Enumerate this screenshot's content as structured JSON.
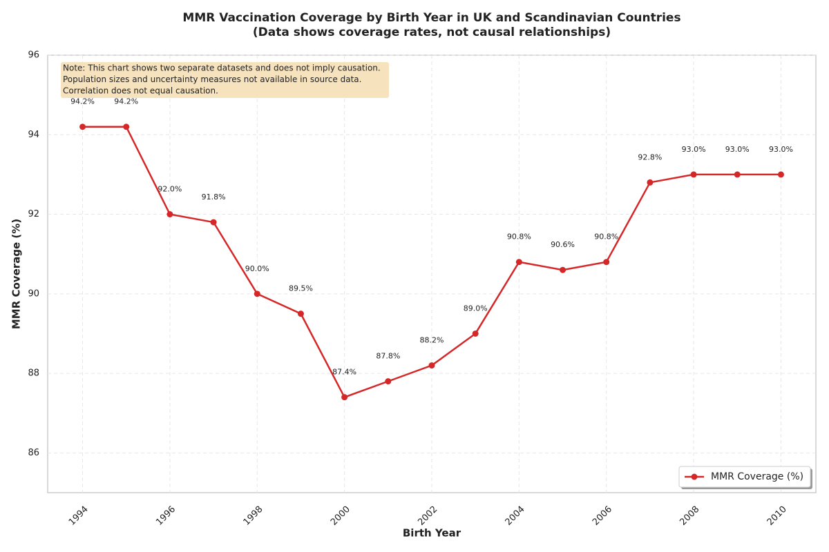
{
  "chart_data": {
    "type": "line",
    "title": "MMR Vaccination Coverage by Birth Year in UK and Scandinavian Countries",
    "subtitle": "(Data shows coverage rates, not causal relationships)",
    "x_label": "Birth Year",
    "y_label": "MMR Coverage (%)",
    "annotation": [
      "Note: This chart shows two separate datasets and does not imply causation.",
      "Population sizes and uncertainty measures not available in source data.",
      "Correlation does not equal causation."
    ],
    "x": [
      1994,
      1995,
      1996,
      1997,
      1998,
      1999,
      2000,
      2001,
      2002,
      2003,
      2004,
      2005,
      2006,
      2007,
      2008,
      2009,
      2010
    ],
    "series": [
      {
        "name": "MMR Coverage (%)",
        "color": "#d62728",
        "values": [
          94.2,
          94.2,
          92.0,
          91.8,
          90.0,
          89.5,
          87.4,
          87.8,
          88.2,
          89.0,
          90.8,
          90.6,
          90.8,
          92.8,
          93.0,
          93.0,
          93.0
        ],
        "value_labels": [
          "94.2%",
          "94.2%",
          "92.0%",
          "91.8%",
          "90.0%",
          "89.5%",
          "87.4%",
          "87.8%",
          "88.2%",
          "89.0%",
          "90.8%",
          "90.6%",
          "90.8%",
          "92.8%",
          "93.0%",
          "93.0%",
          "93.0%"
        ]
      }
    ],
    "xlim": [
      1993.2,
      2010.8
    ],
    "xticks": [
      1994,
      1996,
      1998,
      2000,
      2002,
      2004,
      2006,
      2008,
      2010
    ],
    "ylim": [
      85,
      96
    ],
    "yticks": [
      86,
      88,
      90,
      92,
      94,
      96
    ],
    "grid": true,
    "legend": "lower right"
  }
}
